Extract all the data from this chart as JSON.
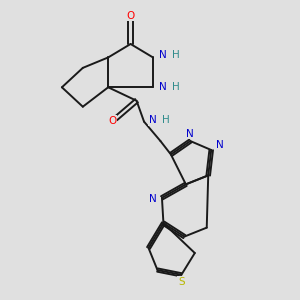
{
  "bg_color": "#e0e0e0",
  "bond_color": "#1a1a1a",
  "bond_width": 1.4,
  "atom_colors": {
    "O": "#ff0000",
    "N": "#0000cd",
    "S": "#b8b800",
    "H": "#2e8b8b",
    "C": "#1a1a1a"
  },
  "figsize": [
    3.0,
    3.0
  ],
  "dpi": 100,
  "xlim": [
    0,
    10
  ],
  "ylim": [
    0,
    10
  ]
}
